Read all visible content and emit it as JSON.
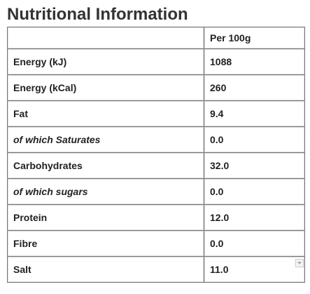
{
  "title": "Nutritional Information",
  "table": {
    "column_header": "Per 100g",
    "rows": [
      [
        "Energy (kJ)",
        "1088"
      ],
      [
        "Energy (kCal)",
        "260"
      ],
      [
        "Fat",
        "9.4"
      ],
      [
        "of which Saturates",
        "0.0"
      ],
      [
        "Carbohydrates",
        "32.0"
      ],
      [
        "of which sugars",
        "0.0"
      ],
      [
        "Protein",
        "12.0"
      ],
      [
        "Fibre",
        "0.0"
      ],
      [
        "Salt",
        "11.0"
      ]
    ]
  }
}
